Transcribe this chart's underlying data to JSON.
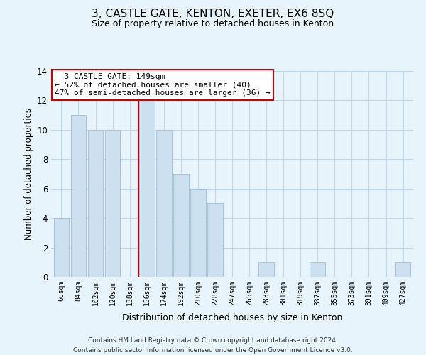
{
  "title": "3, CASTLE GATE, KENTON, EXETER, EX6 8SQ",
  "subtitle": "Size of property relative to detached houses in Kenton",
  "xlabel": "Distribution of detached houses by size in Kenton",
  "ylabel": "Number of detached properties",
  "bar_labels": [
    "66sqm",
    "84sqm",
    "102sqm",
    "120sqm",
    "138sqm",
    "156sqm",
    "174sqm",
    "192sqm",
    "210sqm",
    "228sqm",
    "247sqm",
    "265sqm",
    "283sqm",
    "301sqm",
    "319sqm",
    "337sqm",
    "355sqm",
    "373sqm",
    "391sqm",
    "409sqm",
    "427sqm"
  ],
  "bar_values": [
    4,
    11,
    10,
    10,
    0,
    12,
    10,
    7,
    6,
    5,
    0,
    0,
    1,
    0,
    0,
    1,
    0,
    0,
    0,
    0,
    1
  ],
  "bar_color": "#cde0ef",
  "bar_edge_color": "#a0c0d8",
  "vline_color": "#cc0000",
  "annotation_title": "3 CASTLE GATE: 149sqm",
  "annotation_line1": "← 52% of detached houses are smaller (40)",
  "annotation_line2": "47% of semi-detached houses are larger (36) →",
  "annotation_box_color": "#ffffff",
  "annotation_box_edge": "#cc0000",
  "ylim": [
    0,
    14
  ],
  "yticks": [
    0,
    2,
    4,
    6,
    8,
    10,
    12,
    14
  ],
  "grid_color": "#c0d8ec",
  "background_color": "#e8f4fc",
  "footer_line1": "Contains HM Land Registry data © Crown copyright and database right 2024.",
  "footer_line2": "Contains public sector information licensed under the Open Government Licence v3.0."
}
